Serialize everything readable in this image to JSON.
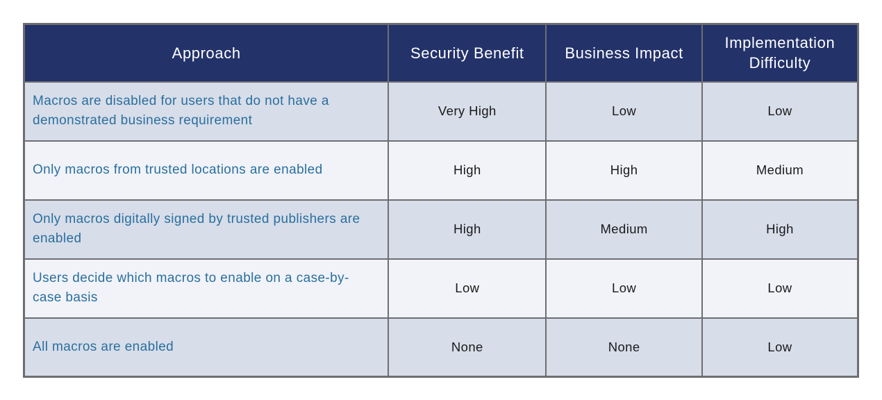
{
  "table": {
    "header": {
      "approach": "Approach",
      "security_benefit": "Security Benefit",
      "business_impact": "Business Impact",
      "implementation_difficulty": "Implementation Difficulty"
    },
    "rows": [
      {
        "approach": "Macros are disabled for users that do not have a demonstrated business requirement",
        "security_benefit": "Very High",
        "business_impact": "Low",
        "implementation_difficulty": "Low"
      },
      {
        "approach": "Only macros from trusted locations are enabled",
        "security_benefit": "High",
        "business_impact": "High",
        "implementation_difficulty": "Medium"
      },
      {
        "approach": "Only macros digitally signed by trusted publishers are enabled",
        "security_benefit": "High",
        "business_impact": "Medium",
        "implementation_difficulty": "High"
      },
      {
        "approach": "Users decide which macros to enable on a case-by-case basis",
        "security_benefit": "Low",
        "business_impact": "Low",
        "implementation_difficulty": "Low"
      },
      {
        "approach": "All macros are enabled",
        "security_benefit": "None",
        "business_impact": "None",
        "implementation_difficulty": "Low"
      }
    ],
    "colors": {
      "header_bg": "#233269",
      "header_text": "#ffffff",
      "row_odd_bg": "#d7dde9",
      "row_even_bg": "#f1f3f8",
      "border": "#6d6e71",
      "approach_text": "#2a6f9e",
      "value_text": "#1a1a1a"
    }
  }
}
